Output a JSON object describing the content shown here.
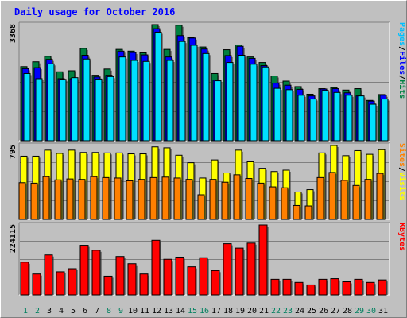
{
  "chart_data": [
    {
      "type": "bar",
      "panel": "pages-files-hits",
      "title": "Daily usage for October 2016",
      "ymax_label": "3368",
      "ylim": [
        0,
        3368
      ],
      "categories": [
        "1",
        "2",
        "3",
        "4",
        "5",
        "6",
        "7",
        "8",
        "9",
        "10",
        "11",
        "12",
        "13",
        "14",
        "15",
        "16",
        "17",
        "18",
        "19",
        "20",
        "21",
        "22",
        "23",
        "24",
        "25",
        "26",
        "27",
        "28",
        "29",
        "30",
        "31"
      ],
      "weekend_days": [
        1,
        2,
        8,
        9,
        15,
        16,
        22,
        23,
        29,
        30
      ],
      "right_label_parts": [
        {
          "text": "Hits",
          "color": "#008040"
        },
        {
          "text": "/",
          "color": "#000000"
        },
        {
          "text": "Files",
          "color": "#0000ff"
        },
        {
          "text": "/",
          "color": "#000000"
        },
        {
          "text": "Pages",
          "color": "#00c0ff"
        }
      ],
      "series": [
        {
          "name": "Hits",
          "color": "#008040",
          "values": [
            2150,
            2290,
            2450,
            2000,
            2030,
            2680,
            1900,
            2080,
            2650,
            2600,
            2550,
            3368,
            2650,
            3350,
            2990,
            2720,
            1950,
            2640,
            2780,
            2430,
            2270,
            1880,
            1730,
            1570,
            1350,
            1510,
            1540,
            1470,
            1510,
            1170,
            1340
          ]
        },
        {
          "name": "Files",
          "color": "#0000ff",
          "values": [
            2090,
            2120,
            2360,
            1800,
            1800,
            2480,
            1850,
            1900,
            2600,
            2560,
            2490,
            3250,
            2430,
            3050,
            2980,
            2660,
            1760,
            2470,
            2740,
            2390,
            2180,
            1670,
            1610,
            1490,
            1300,
            1500,
            1510,
            1390,
            1300,
            1150,
            1320
          ]
        },
        {
          "name": "Pages",
          "color": "#00e0ff",
          "values": [
            1950,
            1800,
            2230,
            1780,
            1830,
            2370,
            1790,
            1860,
            2430,
            2330,
            2300,
            3150,
            2330,
            2880,
            2770,
            2530,
            1740,
            2270,
            2480,
            2220,
            2140,
            1520,
            1480,
            1320,
            1210,
            1460,
            1400,
            1320,
            1300,
            1060,
            1210
          ]
        }
      ]
    },
    {
      "type": "bar",
      "panel": "visits-sites",
      "ymax_label": "795",
      "ylim": [
        0,
        795
      ],
      "right_label_parts": [
        {
          "text": "Visits",
          "color": "#ffff00"
        },
        {
          "text": "/",
          "color": "#000000"
        },
        {
          "text": "Sites",
          "color": "#ff8000"
        }
      ],
      "series": [
        {
          "name": "Visits",
          "color": "#ffff00",
          "values": [
            680,
            680,
            745,
            710,
            745,
            720,
            720,
            715,
            715,
            705,
            705,
            780,
            770,
            690,
            610,
            445,
            640,
            500,
            745,
            620,
            550,
            515,
            530,
            295,
            320,
            715,
            795,
            685,
            740,
            700,
            750
          ]
        },
        {
          "name": "Sites",
          "color": "#ff8000",
          "values": [
            395,
            390,
            460,
            425,
            435,
            430,
            460,
            450,
            445,
            415,
            430,
            450,
            455,
            445,
            430,
            265,
            430,
            400,
            480,
            440,
            390,
            350,
            340,
            150,
            145,
            450,
            505,
            420,
            365,
            430,
            495
          ]
        }
      ]
    },
    {
      "type": "bar",
      "panel": "kbytes",
      "ymax_label": "224115",
      "ylim": [
        0,
        224115
      ],
      "right_label_parts": [
        {
          "text": "KBytes",
          "color": "#ff0000"
        }
      ],
      "series": [
        {
          "name": "KBytes",
          "color": "#ff0000",
          "values": [
            105000,
            67000,
            128000,
            74000,
            84000,
            159000,
            143000,
            60000,
            123000,
            100000,
            67000,
            175000,
            114000,
            121000,
            90000,
            119000,
            78000,
            164000,
            150000,
            166000,
            224115,
            50000,
            50000,
            40000,
            32000,
            50000,
            52000,
            42000,
            50000,
            40000,
            48000
          ]
        }
      ]
    }
  ]
}
